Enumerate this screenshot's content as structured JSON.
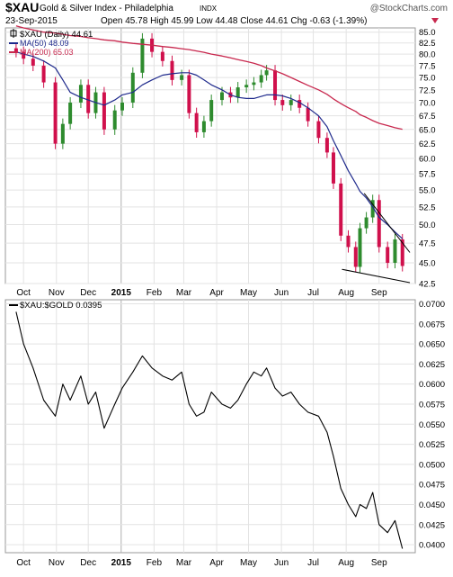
{
  "header": {
    "symbol": "$XAU",
    "name": "Gold & Silver Index - Philadelphia",
    "exchange": "INDX",
    "watermark": "@StockCharts.com",
    "date": "23-Sep-2015",
    "quote": {
      "open_label": "Open",
      "open": "45.78",
      "high_label": "High",
      "high": "45.99",
      "low_label": "Low",
      "low": "44.48",
      "close_label": "Close",
      "close": "44.61",
      "chg_label": "Chg",
      "chg": "-0.63 (-1.39%)"
    }
  },
  "legend": {
    "price": "$XAU (Daily) 44.61",
    "ma50": "MA(50) 48.09",
    "ma200": "MA(200) 65.03",
    "ratio": "$XAU:$GOLD 0.0395"
  },
  "colors": {
    "up": "#2e8b2e",
    "down": "#d0104c",
    "ma50": "#1f2a8c",
    "ma200": "#c8284e",
    "ratio_line": "#000000",
    "grid": "#e3e3e3",
    "frame": "#9a9a9a"
  },
  "x_axis": {
    "month_labels": [
      "Oct",
      "Nov",
      "Dec",
      "2015",
      "Feb",
      "Mar",
      "Apr",
      "May",
      "Jun",
      "Jul",
      "Aug",
      "Sep"
    ]
  },
  "chart_data": [
    {
      "type": "candlestick",
      "title": "$XAU Gold & Silver Index - Philadelphia INDX",
      "ylim": [
        42.5,
        86
      ],
      "y_scale": "log",
      "y_ticks": [
        42.5,
        45.0,
        47.5,
        50.0,
        52.5,
        55.0,
        57.5,
        60.0,
        62.5,
        65.0,
        67.5,
        70.0,
        72.5,
        75.0,
        77.5,
        80.0,
        82.5,
        85.0
      ],
      "grid": true,
      "legend_position": "top-left",
      "x": [
        "2014-09-24",
        "2014-10-01",
        "2014-10-10",
        "2014-10-20",
        "2014-10-31",
        "2014-11-07",
        "2014-11-14",
        "2014-11-24",
        "2014-12-01",
        "2014-12-08",
        "2014-12-16",
        "2014-12-26",
        "2015-01-02",
        "2015-01-12",
        "2015-01-21",
        "2015-01-30",
        "2015-02-09",
        "2015-02-18",
        "2015-02-27",
        "2015-03-06",
        "2015-03-13",
        "2015-03-20",
        "2015-03-27",
        "2015-04-06",
        "2015-04-14",
        "2015-04-21",
        "2015-04-29",
        "2015-05-06",
        "2015-05-13",
        "2015-05-18",
        "2015-05-26",
        "2015-06-02",
        "2015-06-10",
        "2015-06-18",
        "2015-06-26",
        "2015-07-06",
        "2015-07-14",
        "2015-07-20",
        "2015-07-27",
        "2015-08-03",
        "2015-08-10",
        "2015-08-14",
        "2015-08-20",
        "2015-08-26",
        "2015-09-01",
        "2015-09-09",
        "2015-09-16",
        "2015-09-23"
      ],
      "series": [
        {
          "name": "$XAU (Daily)",
          "values": [
            80.5,
            79.0,
            77.5,
            74.0,
            62.5,
            66.0,
            70.0,
            73.5,
            68.0,
            72.0,
            65.0,
            68.5,
            70.0,
            76.0,
            83.5,
            80.5,
            78.5,
            74.5,
            75.5,
            68.0,
            64.5,
            66.5,
            70.5,
            72.0,
            71.0,
            73.0,
            73.5,
            74.0,
            75.5,
            76.5,
            70.5,
            69.5,
            70.5,
            69.0,
            66.5,
            63.5,
            61.0,
            56.0,
            48.5,
            47.0,
            44.5,
            49.5,
            51.0,
            53.5,
            47.0,
            45.0,
            48.0,
            44.61
          ]
        },
        {
          "name": "MA(50)",
          "values": [
            80.5,
            80.0,
            79.5,
            78.5,
            77.0,
            74.5,
            72.0,
            71.0,
            70.5,
            70.0,
            69.5,
            70.5,
            71.5,
            72.0,
            73.5,
            74.5,
            75.5,
            75.8,
            76.0,
            76.0,
            75.5,
            74.5,
            73.5,
            72.5,
            71.5,
            71.0,
            70.8,
            70.8,
            71.2,
            71.5,
            71.5,
            71.3,
            70.8,
            70.0,
            69.0,
            67.5,
            65.5,
            63.0,
            60.5,
            58.0,
            56.0,
            54.8,
            53.8,
            52.5,
            51.0,
            50.0,
            49.0,
            48.09
          ]
        },
        {
          "name": "MA(200)",
          "values": [
            86.5,
            86.0,
            85.5,
            85.0,
            84.8,
            84.5,
            84.2,
            84.0,
            83.7,
            83.5,
            83.2,
            83.0,
            82.7,
            82.4,
            82.2,
            82.0,
            81.7,
            81.5,
            81.2,
            81.0,
            80.7,
            80.4,
            80.0,
            79.6,
            79.2,
            78.8,
            78.4,
            78.0,
            77.5,
            77.0,
            76.4,
            75.8,
            75.0,
            74.2,
            73.4,
            72.5,
            71.6,
            70.7,
            69.8,
            69.0,
            68.3,
            67.7,
            67.2,
            66.6,
            66.1,
            65.7,
            65.3,
            65.03
          ]
        }
      ],
      "annotations": "Two hand-drawn trendlines forming a falling wedge from early August to late September 2015"
    },
    {
      "type": "line",
      "title": "$XAU:$GOLD 0.0395",
      "ylim": [
        0.039,
        0.0705
      ],
      "y_ticks": [
        0.04,
        0.0425,
        0.045,
        0.0475,
        0.05,
        0.0525,
        0.055,
        0.0575,
        0.06,
        0.0625,
        0.065,
        0.0675,
        0.07
      ],
      "grid": true,
      "x": [
        "2014-09-24",
        "2014-10-01",
        "2014-10-10",
        "2014-10-20",
        "2014-10-31",
        "2014-11-07",
        "2014-11-14",
        "2014-11-24",
        "2014-12-01",
        "2014-12-08",
        "2014-12-16",
        "2014-12-26",
        "2015-01-02",
        "2015-01-12",
        "2015-01-21",
        "2015-01-30",
        "2015-02-09",
        "2015-02-18",
        "2015-02-27",
        "2015-03-06",
        "2015-03-13",
        "2015-03-20",
        "2015-03-27",
        "2015-04-06",
        "2015-04-14",
        "2015-04-21",
        "2015-04-29",
        "2015-05-06",
        "2015-05-13",
        "2015-05-18",
        "2015-05-26",
        "2015-06-02",
        "2015-06-10",
        "2015-06-18",
        "2015-06-26",
        "2015-07-06",
        "2015-07-14",
        "2015-07-20",
        "2015-07-27",
        "2015-08-03",
        "2015-08-10",
        "2015-08-14",
        "2015-08-20",
        "2015-08-26",
        "2015-09-01",
        "2015-09-09",
        "2015-09-16",
        "2015-09-23"
      ],
      "series": [
        {
          "name": "$XAU:$GOLD",
          "values": [
            0.069,
            0.065,
            0.062,
            0.058,
            0.056,
            0.06,
            0.058,
            0.061,
            0.0575,
            0.059,
            0.0545,
            0.0575,
            0.0595,
            0.0615,
            0.0635,
            0.062,
            0.061,
            0.0605,
            0.0615,
            0.0575,
            0.056,
            0.0565,
            0.059,
            0.0575,
            0.057,
            0.058,
            0.06,
            0.0615,
            0.061,
            0.062,
            0.0595,
            0.0585,
            0.059,
            0.0575,
            0.0565,
            0.056,
            0.054,
            0.051,
            0.047,
            0.045,
            0.0435,
            0.045,
            0.0445,
            0.0465,
            0.0425,
            0.0415,
            0.043,
            0.0395
          ]
        }
      ]
    }
  ]
}
